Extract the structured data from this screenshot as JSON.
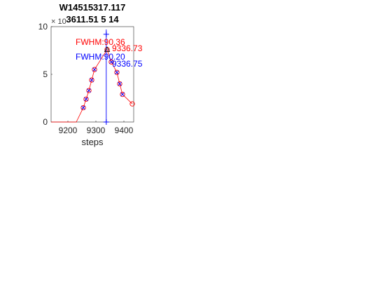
{
  "chart_data": {
    "type": "line",
    "title_lines": [
      "W14515317.117",
      "3611.51 5 14"
    ],
    "title": "W14515317.117 3611.51 5 14",
    "xlabel": "steps",
    "ylabel": "",
    "xlim": [
      9140,
      9435
    ],
    "ylim": [
      0,
      10
    ],
    "x_ticks": [
      9200,
      9300,
      9400
    ],
    "y_ticks": [
      0,
      5,
      10
    ],
    "y_exponent_label": "× 10",
    "grid": false,
    "legend": "none",
    "series": [
      {
        "color": "#ff0000",
        "marker": "circle",
        "x": [
          9140,
          9230,
          9255,
          9265,
          9275,
          9285,
          9295,
          9340,
          9355,
          9375,
          9385,
          9395,
          9430
        ],
        "y": [
          0,
          0,
          1.5,
          2.4,
          3.3,
          4.4,
          5.5,
          7.6,
          6.3,
          5.2,
          4.0,
          2.9,
          1.9
        ]
      },
      {
        "color": "#0000ff",
        "marker": "x",
        "x": [
          9255,
          9265,
          9275,
          9285,
          9295,
          9355,
          9375,
          9385,
          9395
        ],
        "y": [
          1.5,
          2.4,
          3.3,
          4.4,
          5.5,
          6.3,
          5.2,
          4.0,
          2.9
        ]
      }
    ],
    "peak_marker": {
      "x": 9337,
      "y": 9.2,
      "color": "#0000ff"
    },
    "peak_line": {
      "x": 9337,
      "color": "#0000ff"
    },
    "annotations": [
      {
        "text": "FWHM:90.36",
        "color": "#ff0000"
      },
      {
        "text": "9336.73",
        "color": "#ff0000"
      },
      {
        "text": "FWHM:90.20",
        "color": "#0000ff"
      },
      {
        "text": "9336.75",
        "color": "#0000ff"
      }
    ]
  }
}
